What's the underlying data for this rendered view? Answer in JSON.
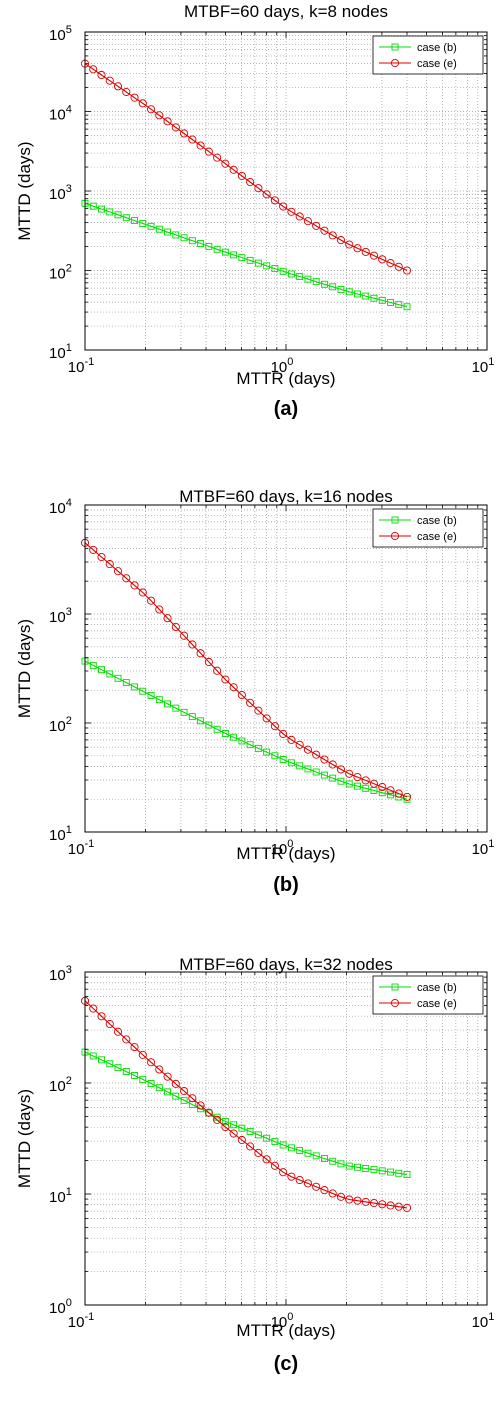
{
  "panels": [
    {
      "title": "MTBF=60 days, k=8 nodes",
      "xlabel": "MTTR (days)",
      "ylabel": "MTTD (days)",
      "caption": "(a)"
    },
    {
      "title": "MTBF=60 days, k=16 nodes",
      "xlabel": "MTTR (days)",
      "ylabel": "MTTD (days)",
      "caption": "(b)"
    },
    {
      "title": "MTBF=60 days, k=32 nodes",
      "xlabel": "MTTR (days)",
      "ylabel": "MTTD (days)",
      "caption": "(c)"
    }
  ],
  "chart_data": [
    {
      "type": "line",
      "title": "MTBF=60 days, k=8 nodes",
      "xlabel": "MTTR (days)",
      "ylabel": "MTTD (days)",
      "x_scale": "log",
      "y_scale": "log",
      "xlim": [
        0.1,
        10
      ],
      "ylim": [
        10,
        100000
      ],
      "x_ticks": [
        {
          "base": "10",
          "exp": "-1"
        },
        {
          "base": "10",
          "exp": "0"
        },
        {
          "base": "10",
          "exp": "1"
        }
      ],
      "y_ticks": [
        {
          "base": "10",
          "exp": "1"
        },
        {
          "base": "10",
          "exp": "2"
        },
        {
          "base": "10",
          "exp": "3"
        },
        {
          "base": "10",
          "exp": "4"
        },
        {
          "base": "10",
          "exp": "5"
        }
      ],
      "grid": true,
      "legend": "top-right",
      "series": [
        {
          "name": "case (b)",
          "color": "#00dd00",
          "marker": "square",
          "x": [
            0.1,
            0.2,
            0.5,
            1,
            2,
            4
          ],
          "y": [
            700,
            380,
            170,
            95,
            55,
            35
          ]
        },
        {
          "name": "case (e)",
          "color": "#dd0000",
          "marker": "circle",
          "x": [
            0.1,
            0.2,
            0.5,
            1,
            2,
            4
          ],
          "y": [
            40000,
            12000,
            2200,
            600,
            220,
            100
          ]
        }
      ]
    },
    {
      "type": "line",
      "title": "MTBF=60 days, k=16 nodes",
      "xlabel": "MTTR (days)",
      "ylabel": "MTTD (days)",
      "x_scale": "log",
      "y_scale": "log",
      "xlim": [
        0.1,
        10
      ],
      "ylim": [
        10,
        10000
      ],
      "x_ticks": [
        {
          "base": "10",
          "exp": "-1"
        },
        {
          "base": "10",
          "exp": "0"
        },
        {
          "base": "10",
          "exp": "1"
        }
      ],
      "y_ticks": [
        {
          "base": "10",
          "exp": "1"
        },
        {
          "base": "10",
          "exp": "2"
        },
        {
          "base": "10",
          "exp": "3"
        },
        {
          "base": "10",
          "exp": "4"
        }
      ],
      "grid": true,
      "legend": "top-right",
      "series": [
        {
          "name": "case (b)",
          "color": "#00dd00",
          "marker": "square",
          "x": [
            0.1,
            0.2,
            0.5,
            1,
            2,
            4
          ],
          "y": [
            370,
            190,
            80,
            45,
            28,
            20
          ]
        },
        {
          "name": "case (e)",
          "color": "#dd0000",
          "marker": "circle",
          "x": [
            0.1,
            0.2,
            0.5,
            1,
            2,
            4
          ],
          "y": [
            4500,
            1500,
            250,
            75,
            35,
            21
          ]
        }
      ]
    },
    {
      "type": "line",
      "title": "MTBF=60 days, k=32 nodes",
      "xlabel": "MTTR (days)",
      "ylabel": "MTTD (days)",
      "x_scale": "log",
      "y_scale": "log",
      "xlim": [
        0.1,
        10
      ],
      "ylim": [
        1,
        1000
      ],
      "x_ticks": [
        {
          "base": "10",
          "exp": "-1"
        },
        {
          "base": "10",
          "exp": "0"
        },
        {
          "base": "10",
          "exp": "1"
        }
      ],
      "y_ticks": [
        {
          "base": "10",
          "exp": "0"
        },
        {
          "base": "10",
          "exp": "1"
        },
        {
          "base": "10",
          "exp": "2"
        },
        {
          "base": "10",
          "exp": "3"
        }
      ],
      "grid": true,
      "legend": "top-right",
      "series": [
        {
          "name": "case (b)",
          "color": "#00dd00",
          "marker": "square",
          "x": [
            0.1,
            0.2,
            0.5,
            1,
            2,
            4
          ],
          "y": [
            190,
            105,
            45,
            27,
            18,
            15
          ]
        },
        {
          "name": "case (e)",
          "color": "#dd0000",
          "marker": "circle",
          "x": [
            0.1,
            0.2,
            0.5,
            1,
            2,
            4
          ],
          "y": [
            550,
            170,
            40,
            15,
            9,
            7.5
          ]
        }
      ]
    }
  ]
}
